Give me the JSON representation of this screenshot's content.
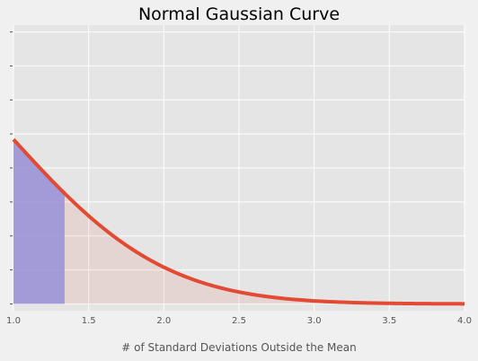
{
  "chart_data": {
    "type": "area",
    "title": "Normal Gaussian Curve",
    "xlabel": "# of Standard Deviations Outside the Mean",
    "ylabel": "",
    "xlim": [
      1.0,
      4.0
    ],
    "ylim": [
      -0.01,
      0.41
    ],
    "x_ticks": [
      "1.0",
      "1.5",
      "2.0",
      "2.5",
      "3.0",
      "3.5",
      "4.0"
    ],
    "x_tick_values": [
      1.0,
      1.5,
      2.0,
      2.5,
      3.0,
      3.5,
      4.0
    ],
    "y_tick_values": [
      0.0,
      0.05,
      0.1,
      0.15,
      0.2,
      0.25,
      0.3,
      0.35,
      0.4
    ],
    "y_tick_labels_shown": false,
    "grid": true,
    "series": [
      {
        "kind": "line",
        "function": "standard normal pdf",
        "x": [
          1.0,
          1.1,
          1.2,
          1.3,
          1.34,
          1.4,
          1.5,
          1.6,
          1.7,
          1.8,
          1.9,
          2.0,
          2.2,
          2.4,
          2.6,
          2.8,
          3.0,
          3.2,
          3.4,
          3.6,
          3.8,
          4.0
        ],
        "y": [
          0.242,
          0.2179,
          0.1942,
          0.1714,
          0.1626,
          0.1497,
          0.1295,
          0.1109,
          0.094,
          0.079,
          0.0656,
          0.054,
          0.0355,
          0.0224,
          0.0136,
          0.0079,
          0.0044,
          0.0024,
          0.0012,
          0.0006,
          0.0003,
          0.0001
        ],
        "color": "#e24a33"
      }
    ],
    "shaded_regions": [
      {
        "from": 1.0,
        "to": 1.34,
        "under": "curve",
        "color": "#988ed5",
        "opacity": 0.85
      },
      {
        "from": 1.34,
        "to": 4.0,
        "under": "curve",
        "color": "#e24a33",
        "opacity": 0.1
      }
    ],
    "colors": {
      "plot_background": "#e5e5e5",
      "figure_background": "#f0f0f0",
      "grid": "#ffffff",
      "curve": "#e24a33",
      "highlight_fill": "#988ed5"
    }
  }
}
